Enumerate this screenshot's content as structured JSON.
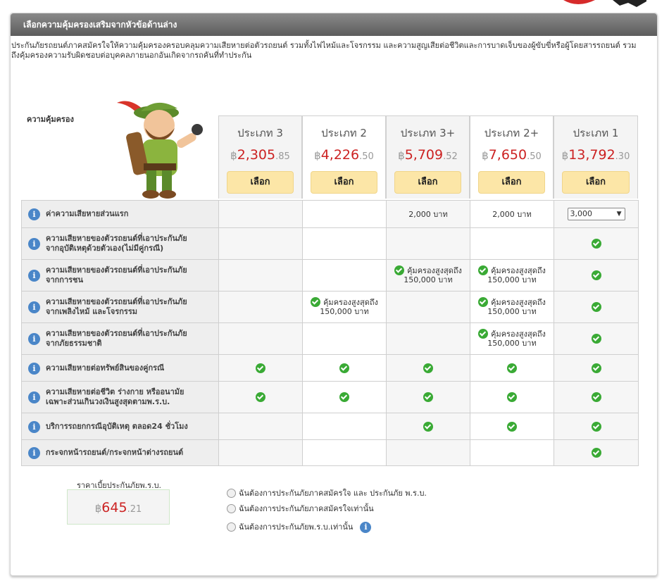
{
  "header": {
    "title": "เลือกความคุ้มครองเสริมจากหัวข้อด้านล่าง"
  },
  "intro": "ประกันภัยรถยนต์ภาคสมัครใจให้ความคุ้มครองครอบคลุมความเสียหายต่อตัวรถยนต์ รวมทั้งไฟไหม้และโจรกรรม และความสูญเสียต่อชีวิตและการบาดเจ็บของผู้ขับขี่หรือผู้โดยสารรถยนต์ รวมถึงคุ้มครองความรับผิดชอบต่อบุคคลภายนอกอันเกิดจากรถคันที่ทำประกัน",
  "coverage_label": "ความคุ้มครอง",
  "currency_symbol": "฿",
  "select_label": "เลือก",
  "plans": [
    {
      "name": "ประเภท 3",
      "price_int": "2,305",
      "price_dec": ".85"
    },
    {
      "name": "ประเภท 2",
      "price_int": "4,226",
      "price_dec": ".50"
    },
    {
      "name": "ประเภท 3+",
      "price_int": "5,709",
      "price_dec": ".52"
    },
    {
      "name": "ประเภท 2+",
      "price_int": "7,650",
      "price_dec": ".50"
    },
    {
      "name": "ประเภท 1",
      "price_int": "13,792",
      "price_dec": ".30"
    }
  ],
  "rows": {
    "deductible": {
      "label": "ค่าความเสียหายส่วนแรก",
      "plan3plus": "2,000 บาท",
      "plan2plus": "2,000 บาท",
      "plan1_selected": "3,000"
    },
    "own_damage_no_party": {
      "label1": "ความเสียหายของตัวรถยนต์ที่เอาประกันภัย",
      "label2": "จากอุบัติเหตุด้วยตัวเอง(ไม่มีคู่กรณี)"
    },
    "collision": {
      "label1": "ความเสียหายของตัวรถยนต์ที่เอาประกันภัย",
      "label2": "จากการชน"
    },
    "fire_theft": {
      "label1": "ความเสียหายของตัวรถยนต์ที่เอาประกันภัย",
      "label2": "จากเพลิงไหม้ และโจรกรรม"
    },
    "natural_disaster": {
      "label1": "ความเสียหายของตัวรถยนต์ที่เอาประกันภัย",
      "label2": "จากภัยธรรมชาติ"
    },
    "third_party_property": {
      "label": "ความเสียหายต่อทรัพย์สินของคู่กรณี"
    },
    "bodily_injury": {
      "label1": "ความเสียหายต่อชีวิต ร่างกาย หรืออนามัย",
      "label2": "เฉพาะส่วนเกินวงเงินสูงสุดตามพ.ร.บ."
    },
    "roadside": {
      "label": "บริการรถยกกรณีอุบัติเหตุ ตลอด24 ชั่วโมง"
    },
    "windshield": {
      "label": "กระจกหน้ารถยนต์/กระจกหน้าต่างรถยนต์"
    }
  },
  "cap": {
    "line1": "คุ้มครองสูงสุดถึง",
    "line2": "150,000 บาท"
  },
  "compulsory": {
    "label": "ราคาเบี้ยประกันภัยพ.ร.บ.",
    "price_int": "645",
    "price_dec": ".21"
  },
  "options": [
    "ฉันต้องการประกันภัยภาคสมัครใจ และ ประกันภัย พ.ร.บ.",
    "ฉันต้องการประกันภัยภาคสมัครใจเท่านั้น",
    "ฉันต้องการประกันภัยพ.ร.บ.เท่านั้น"
  ],
  "colors": {
    "header": "#6e6e6e",
    "price": "#cc2222",
    "button": "#fce6a7",
    "check": "#3aaa35",
    "info": "#4a86c8"
  },
  "icons": {
    "info": "info-icon",
    "check": "check-icon"
  }
}
